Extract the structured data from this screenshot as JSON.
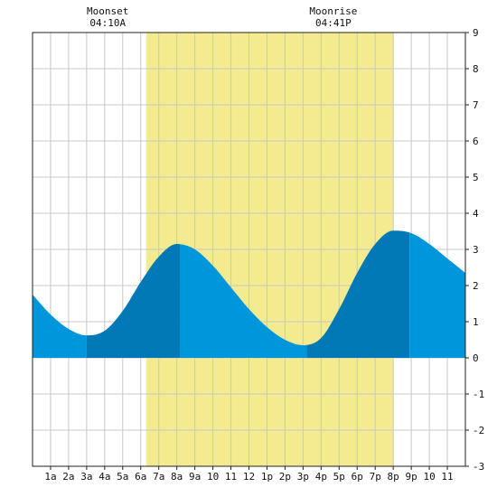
{
  "chart_data": {
    "type": "area",
    "title": "",
    "xlabel": "",
    "ylabel": "",
    "xlim": [
      0,
      24
    ],
    "ylim": [
      -3,
      9
    ],
    "grid": true,
    "y_ticks": [
      -3,
      -2,
      -1,
      0,
      1,
      2,
      3,
      4,
      5,
      6,
      7,
      8,
      9
    ],
    "x_tick_labels": [
      "1a",
      "2a",
      "3a",
      "4a",
      "5a",
      "6a",
      "7a",
      "8a",
      "9a",
      "10",
      "11",
      "12",
      "1p",
      "2p",
      "3p",
      "4p",
      "5p",
      "6p",
      "7p",
      "8p",
      "9p",
      "10",
      "11"
    ],
    "daylight": [
      6.3,
      20.0
    ],
    "tide_series": {
      "x": [
        0,
        1,
        2,
        3,
        4,
        5,
        6,
        7,
        8,
        9,
        10,
        11,
        12,
        13,
        14,
        15,
        16,
        17,
        18,
        19,
        20,
        21,
        22,
        23,
        24
      ],
      "y": [
        1.75,
        1.2,
        0.8,
        0.62,
        0.75,
        1.3,
        2.1,
        2.8,
        3.15,
        3.0,
        2.55,
        1.95,
        1.35,
        0.85,
        0.5,
        0.35,
        0.55,
        1.35,
        2.35,
        3.15,
        3.52,
        3.45,
        3.15,
        2.75,
        2.35
      ]
    },
    "extremes": [
      {
        "type": "low",
        "x": 3.0
      },
      {
        "type": "high",
        "x": 8.2
      },
      {
        "type": "low",
        "x": 15.2
      },
      {
        "type": "high",
        "x": 20.9
      }
    ],
    "moon_events": [
      {
        "label": "Moonset",
        "time": "04:10A",
        "x": 4.17
      },
      {
        "label": "Moonrise",
        "time": "04:41P",
        "x": 16.68
      }
    ],
    "colors": {
      "daylight": "#f4ea8f",
      "water_light": "#0096dc",
      "water_dark": "#0079b6",
      "grid": "#c8c8c8",
      "axis": "#222222"
    }
  }
}
